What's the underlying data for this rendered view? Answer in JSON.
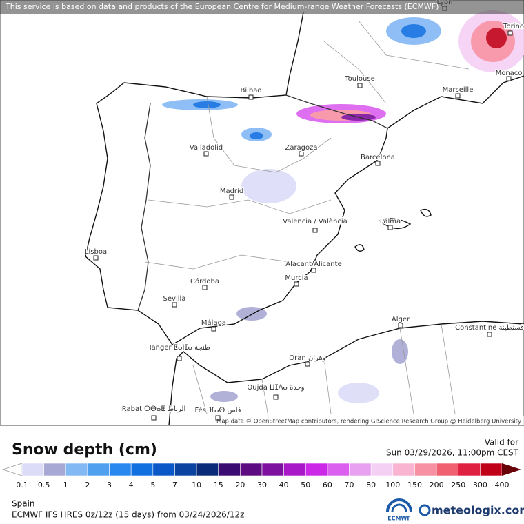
{
  "attribution": "This service is based on data and products of the European Centre for Medium-range Weather Forecasts (ECMWF)",
  "map_credit": "Map data © OpenStreetMap contributors, rendering GIScience Research Group @ Heidelberg University",
  "cities": [
    {
      "label": "Lyon"
    },
    {
      "label": "Torino"
    },
    {
      "label": "Monaco"
    },
    {
      "label": "Toulouse"
    },
    {
      "label": "Marseille"
    },
    {
      "label": "Bilbao"
    },
    {
      "label": "Valladolid"
    },
    {
      "label": "Zaragoza"
    },
    {
      "label": "Barcelona"
    },
    {
      "label": "Madrid"
    },
    {
      "label": "Valencia / València"
    },
    {
      "label": "Palma"
    },
    {
      "label": "Lisboa"
    },
    {
      "label": "Alacant/Alicante"
    },
    {
      "label": "Murcia"
    },
    {
      "label": "Córdoba"
    },
    {
      "label": "Sevilla"
    },
    {
      "label": "Málaga"
    },
    {
      "label": "Alger"
    },
    {
      "label": "Constantine قسنطينة"
    },
    {
      "label": "Tanger ⵟⴰⵏⵊⴰ طنجة"
    },
    {
      "label": "Oran وهران"
    },
    {
      "label": "Oujda ⵡⵊⴷⴰ وجدة"
    },
    {
      "label": "Rabat ⵔⴱⴰⵟ الرباط"
    },
    {
      "label": "Fès ⴼⴰⵙ فاس"
    }
  ],
  "legend": {
    "title": "Snow depth (cm)",
    "ticks": [
      0.1,
      0.5,
      1,
      2,
      3,
      4,
      5,
      7,
      10,
      15,
      20,
      30,
      40,
      50,
      60,
      70,
      80,
      100,
      150,
      200,
      250,
      300,
      400
    ],
    "colors": [
      "#dcdcf8",
      "#a8a8d4",
      "#82b8f4",
      "#50a0f0",
      "#2888f0",
      "#1070e0",
      "#0a58c8",
      "#0a44a0",
      "#0a2c78",
      "#3a0c72",
      "#5c0c80",
      "#7e10a0",
      "#a818c8",
      "#cc28e8",
      "#dc60f0",
      "#e8a0f0",
      "#f4d0f4",
      "#f8b4d0",
      "#f890a4",
      "#f06070",
      "#e02040",
      "#c00018"
    ],
    "under_color": "#ffffff",
    "over_color": "#6a0008"
  },
  "valid": {
    "label": "Valid for",
    "date": "Sun 03/29/2026, 11:00pm CEST"
  },
  "region": "Spain",
  "model": "ECMWF IFS HRES 0z/12z (15 days) from  03/24/2026/12z",
  "ecmwf": "ECMWF",
  "brand": "meteologix.com"
}
